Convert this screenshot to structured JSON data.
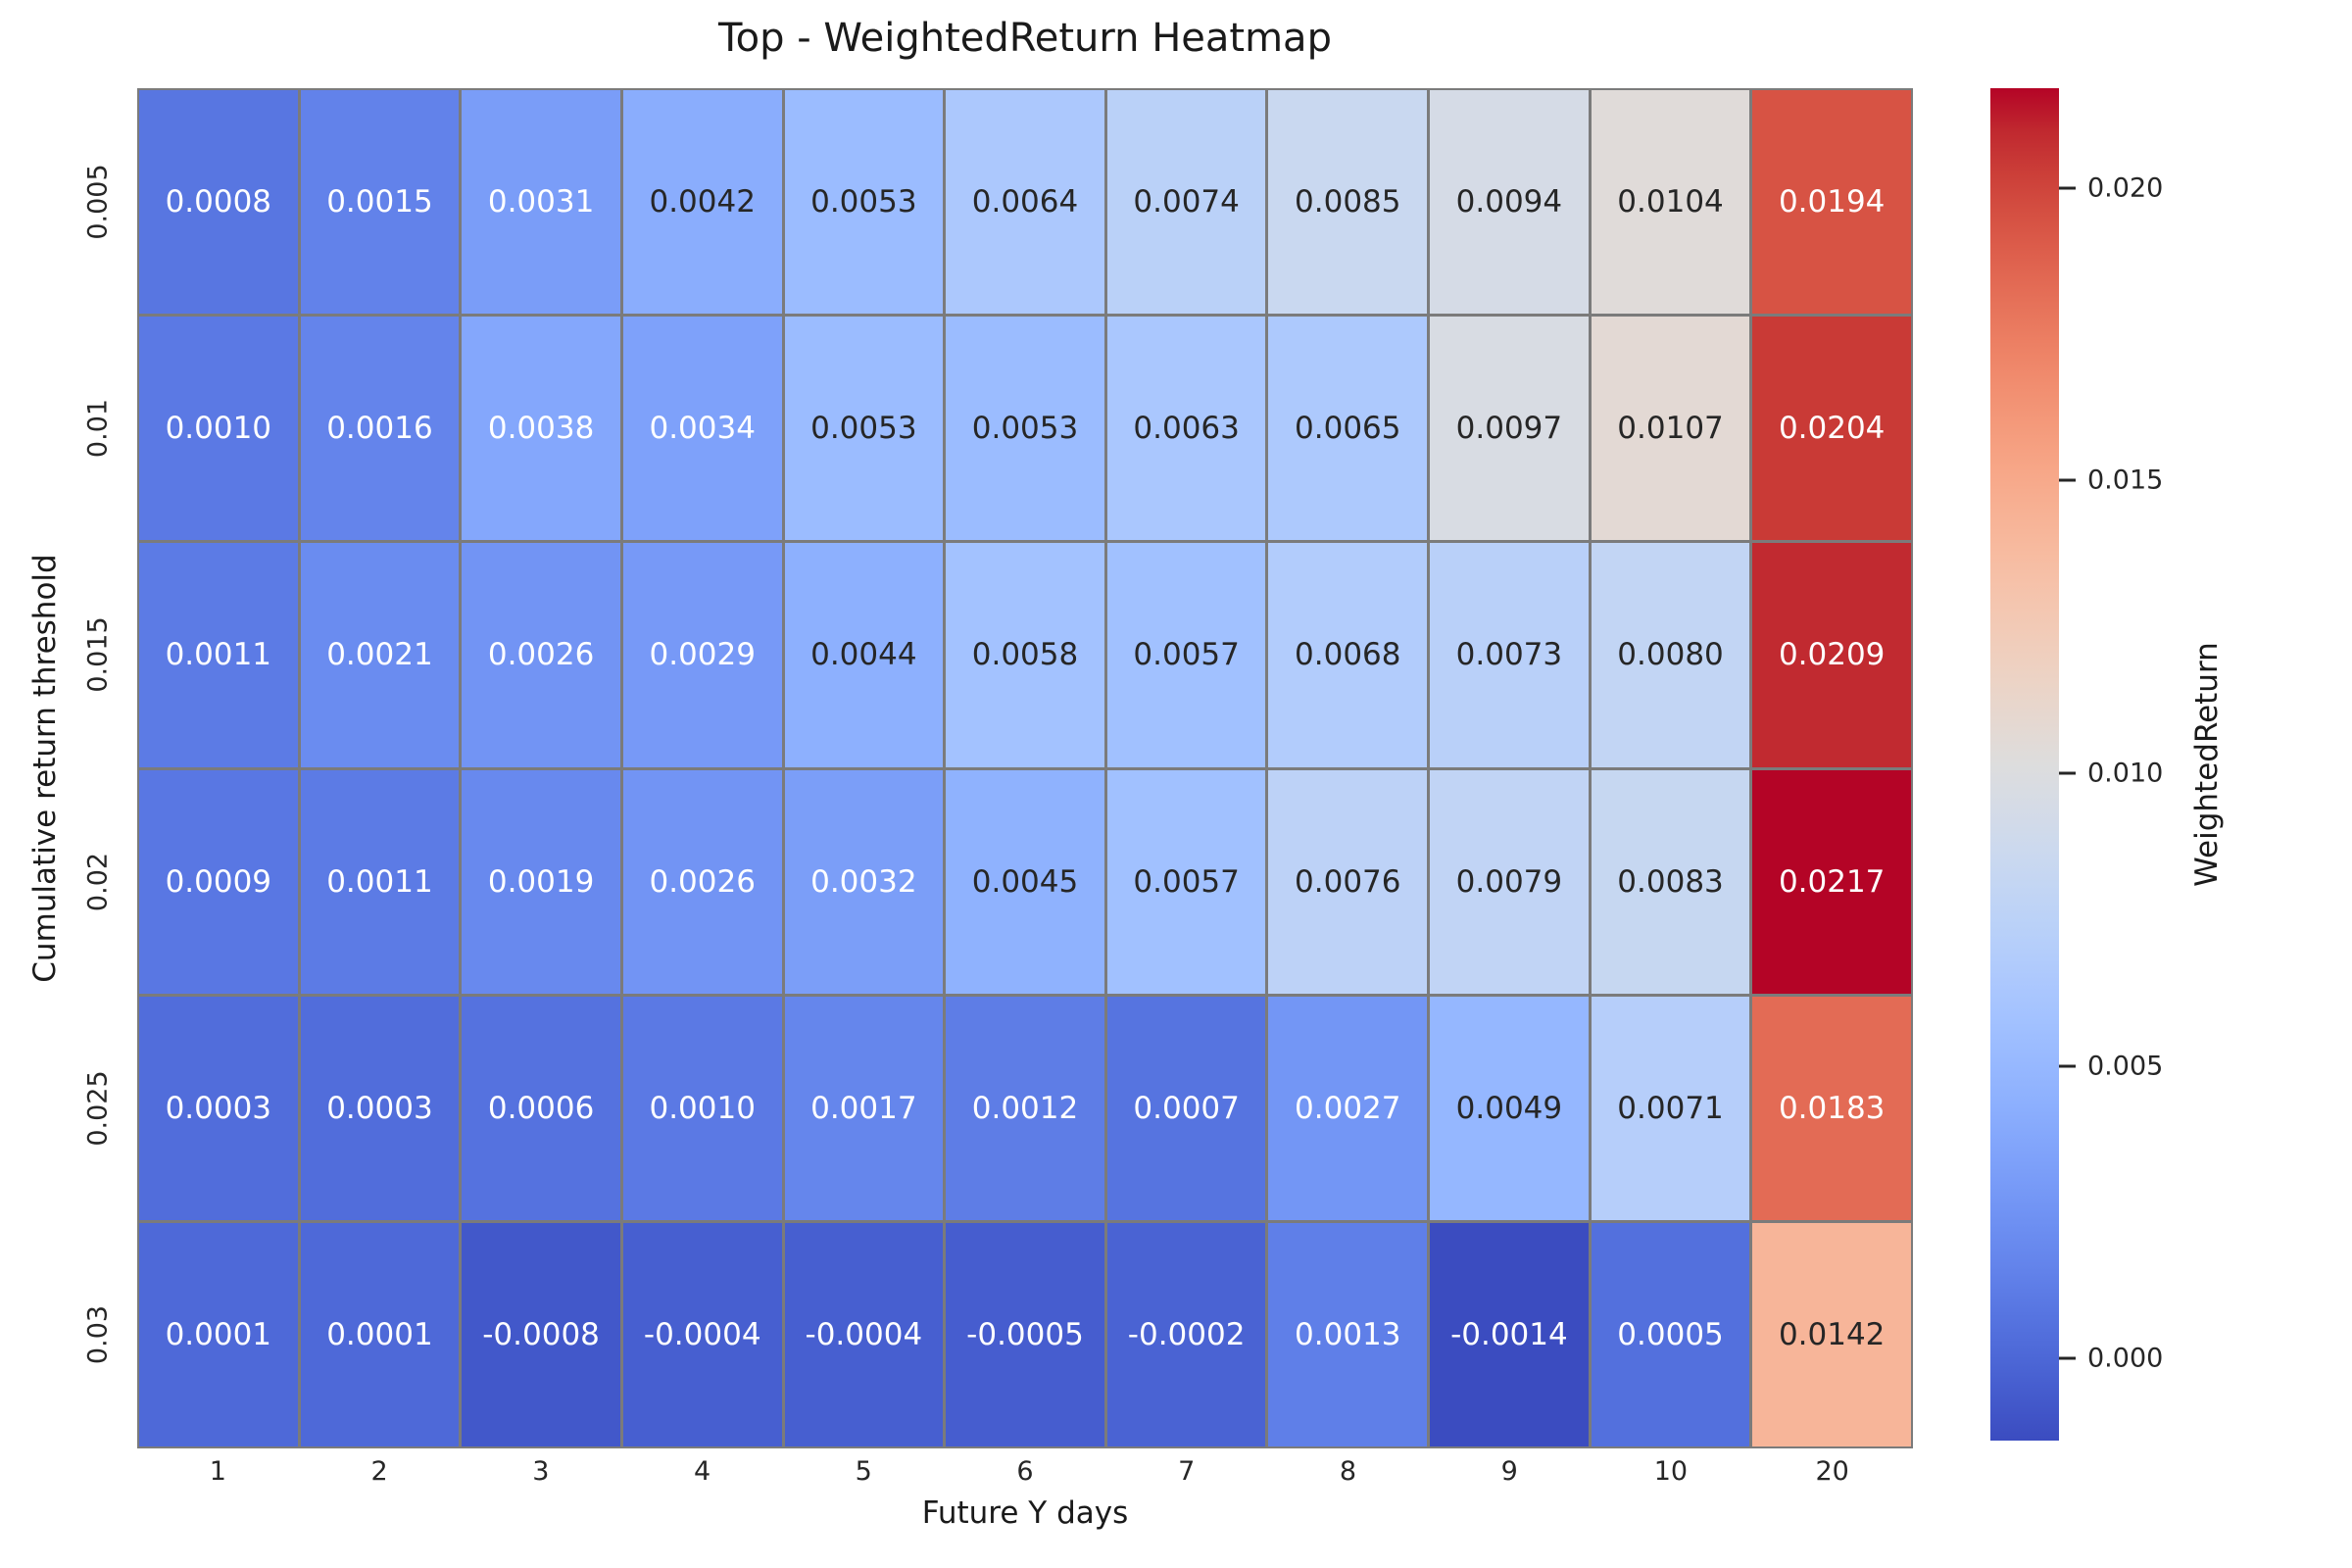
{
  "title": "Top - WeightedReturn Heatmap",
  "chart_data": {
    "type": "heatmap",
    "title": "Top - WeightedReturn Heatmap",
    "xlabel": "Future Y days",
    "ylabel": "Cumulative return threshold",
    "x_categories": [
      "1",
      "2",
      "3",
      "4",
      "5",
      "6",
      "7",
      "8",
      "9",
      "10",
      "20"
    ],
    "y_categories": [
      "0.005",
      "0.01",
      "0.015",
      "0.02",
      "0.025",
      "0.03"
    ],
    "values": [
      [
        "0.0008",
        "0.0015",
        "0.0031",
        "0.0042",
        "0.0053",
        "0.0064",
        "0.0074",
        "0.0085",
        "0.0094",
        "0.0104",
        "0.0194"
      ],
      [
        "0.0010",
        "0.0016",
        "0.0038",
        "0.0034",
        "0.0053",
        "0.0053",
        "0.0063",
        "0.0065",
        "0.0097",
        "0.0107",
        "0.0204"
      ],
      [
        "0.0011",
        "0.0021",
        "0.0026",
        "0.0029",
        "0.0044",
        "0.0058",
        "0.0057",
        "0.0068",
        "0.0073",
        "0.0080",
        "0.0209"
      ],
      [
        "0.0009",
        "0.0011",
        "0.0019",
        "0.0026",
        "0.0032",
        "0.0045",
        "0.0057",
        "0.0076",
        "0.0079",
        "0.0083",
        "0.0217"
      ],
      [
        "0.0003",
        "0.0003",
        "0.0006",
        "0.0010",
        "0.0017",
        "0.0012",
        "0.0007",
        "0.0027",
        "0.0049",
        "0.0071",
        "0.0183"
      ],
      [
        "0.0001",
        "0.0001",
        "-0.0008",
        "-0.0004",
        "-0.0004",
        "-0.0005",
        "-0.0002",
        "0.0013",
        "-0.0014",
        "0.0005",
        "0.0142"
      ]
    ],
    "colormap": "coolwarm",
    "vmin": -0.0014,
    "vmax": 0.0217,
    "grid_line_color": "#7b7b7b",
    "annotation_text_dark": "#262626",
    "annotation_text_light": "#ffffff",
    "colorbar": {
      "label": "WeightedReturn",
      "tick_labels": [
        "0.020",
        "0.015",
        "0.010",
        "0.005",
        "0.000"
      ],
      "position": "right"
    }
  }
}
